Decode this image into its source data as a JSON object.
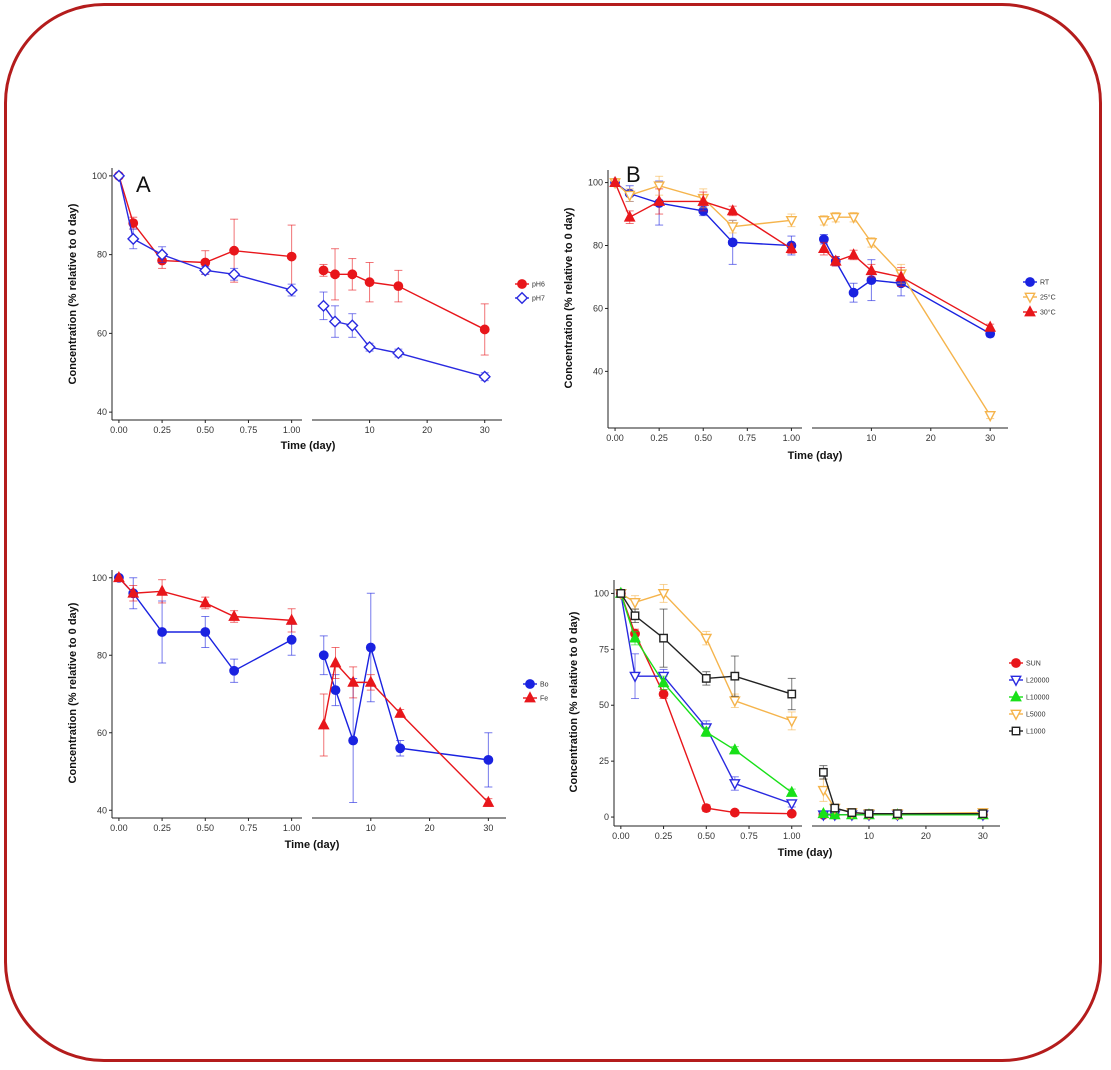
{
  "chart_data": [
    {
      "type": "line",
      "panel_label": "A",
      "xlabel": "Time (day)",
      "ylabel": "Concentration (% relative to 0 day)",
      "ylim": [
        38,
        102
      ],
      "yticks": [
        40,
        60,
        80,
        100
      ],
      "left_xlim": [
        -0.04,
        1.06
      ],
      "left_xticks": [
        "0.00",
        "0.25",
        "0.50",
        "0.75",
        "1.00"
      ],
      "right_xlim": [
        0,
        33
      ],
      "right_xticks": [
        "10",
        "20",
        "30"
      ],
      "legend_position": "right",
      "series": [
        {
          "name": "pH6",
          "color": "#e8161b",
          "marker": "circle",
          "hollow": false,
          "x": [
            0,
            0.083,
            0.25,
            0.5,
            0.667,
            1
          ],
          "y": [
            100,
            88,
            78.5,
            78,
            81,
            79.5
          ],
          "err": [
            0,
            1.5,
            2,
            3,
            8,
            8
          ],
          "x2": [
            2,
            4,
            7,
            10,
            15,
            30
          ],
          "y2": [
            76,
            75,
            75,
            73,
            72,
            61
          ],
          "err2": [
            1.5,
            6.5,
            4,
            5,
            4,
            6.5
          ]
        },
        {
          "name": "pH7",
          "color": "#2a2ae0",
          "marker": "diamond",
          "hollow": true,
          "x": [
            0,
            0.083,
            0.25,
            0.5,
            0.667,
            1
          ],
          "y": [
            100,
            84,
            80,
            76,
            75,
            71
          ],
          "err": [
            0,
            2.5,
            2,
            1,
            1.5,
            1.5
          ],
          "x2": [
            2,
            4,
            7,
            10,
            15,
            30
          ],
          "y2": [
            67,
            63,
            62,
            56.5,
            55,
            49
          ],
          "err2": [
            3.5,
            4,
            3,
            1,
            1,
            1
          ]
        }
      ]
    },
    {
      "type": "line",
      "panel_label": "B",
      "xlabel": "Time (day)",
      "ylabel": "Concentration (% relative to 0 day)",
      "ylim": [
        22,
        104
      ],
      "yticks": [
        40,
        60,
        80,
        100
      ],
      "left_xlim": [
        -0.04,
        1.06
      ],
      "left_xticks": [
        "0.00",
        "0.25",
        "0.50",
        "0.75",
        "1.00"
      ],
      "right_xlim": [
        0,
        33
      ],
      "right_xticks": [
        "10",
        "20",
        "30"
      ],
      "legend_position": "right",
      "series": [
        {
          "name": "RT",
          "color": "#1a22e0",
          "marker": "circle",
          "hollow": false,
          "x": [
            0,
            0.083,
            0.25,
            0.5,
            0.667,
            1
          ],
          "y": [
            100,
            96.5,
            93.5,
            91,
            81,
            80
          ],
          "err": [
            0,
            2.5,
            7,
            1.5,
            7,
            3
          ],
          "x2": [
            2,
            4,
            7,
            10,
            15,
            30
          ],
          "y2": [
            82,
            75,
            65,
            69,
            68,
            52
          ],
          "err2": [
            1.5,
            1.5,
            3,
            6.5,
            4,
            1
          ]
        },
        {
          "name": "25°C",
          "color": "#f5b44c",
          "marker": "triangle-down",
          "hollow": true,
          "x": [
            0,
            0.083,
            0.25,
            0.5,
            0.667,
            1
          ],
          "y": [
            100,
            96,
            99,
            95,
            86,
            88
          ],
          "err": [
            0,
            2,
            3,
            3,
            2,
            2
          ],
          "x2": [
            2,
            4,
            7,
            10,
            15,
            30
          ],
          "y2": [
            88,
            89,
            89,
            81,
            71,
            26
          ],
          "err2": [
            1.5,
            1.5,
            1.5,
            1.5,
            3,
            1
          ]
        },
        {
          "name": "30°C",
          "color": "#e8161b",
          "marker": "triangle",
          "hollow": false,
          "x": [
            0,
            0.083,
            0.25,
            0.5,
            0.667,
            1
          ],
          "y": [
            100,
            89,
            94,
            94,
            91,
            79
          ],
          "err": [
            0,
            2,
            4,
            3,
            1.5,
            1.5
          ],
          "x2": [
            2,
            4,
            7,
            10,
            15,
            30
          ],
          "y2": [
            79,
            75,
            77,
            72,
            70,
            54
          ],
          "err2": [
            2,
            1.5,
            1.5,
            2,
            3,
            1
          ]
        }
      ]
    },
    {
      "type": "line",
      "panel_label": "",
      "xlabel": "Time (day)",
      "ylabel": "Concentration (% relative to 0 day)",
      "ylim": [
        38,
        102
      ],
      "yticks": [
        40,
        60,
        80,
        100
      ],
      "left_xlim": [
        -0.04,
        1.06
      ],
      "left_xticks": [
        "0.00",
        "0.25",
        "0.50",
        "0.75",
        "1.00"
      ],
      "right_xlim": [
        0,
        33
      ],
      "right_xticks": [
        "10",
        "20",
        "30"
      ],
      "legend_position": "right",
      "series": [
        {
          "name": "Bo",
          "color": "#1a22e0",
          "marker": "circle",
          "hollow": false,
          "x": [
            0,
            0.083,
            0.25,
            0.5,
            0.667,
            1
          ],
          "y": [
            100,
            96,
            86,
            86,
            76,
            84
          ],
          "err": [
            0,
            4,
            8,
            4,
            3,
            4
          ],
          "x2": [
            2,
            4,
            7,
            10,
            15,
            30
          ],
          "y2": [
            80,
            71,
            58,
            82,
            56,
            53
          ],
          "err2": [
            5,
            4,
            16,
            14,
            2,
            7
          ]
        },
        {
          "name": "Fe",
          "color": "#e8161b",
          "marker": "triangle",
          "hollow": false,
          "x": [
            0,
            0.083,
            0.25,
            0.5,
            0.667,
            1
          ],
          "y": [
            100,
            96,
            96.5,
            93.5,
            90,
            89
          ],
          "err": [
            0,
            2,
            3,
            1.5,
            1.5,
            3
          ],
          "x2": [
            2,
            4,
            7,
            10,
            15,
            30
          ],
          "y2": [
            62,
            78,
            73,
            73,
            65,
            42
          ],
          "err2": [
            8,
            4,
            4,
            2,
            1,
            1
          ]
        }
      ]
    },
    {
      "type": "line",
      "panel_label": "",
      "xlabel": "Time (day)",
      "ylabel": "Concentration (% relative to 0 day)",
      "ylim": [
        -4,
        106
      ],
      "yticks": [
        0,
        25,
        50,
        75,
        100
      ],
      "left_xlim": [
        -0.04,
        1.06
      ],
      "left_xticks": [
        "0.00",
        "0.25",
        "0.50",
        "0.75",
        "1.00"
      ],
      "right_xlim": [
        0,
        33
      ],
      "right_xticks": [
        "10",
        "20",
        "30"
      ],
      "legend_position": "right",
      "series": [
        {
          "name": "SUN",
          "color": "#e8161b",
          "marker": "circle",
          "hollow": false,
          "x": [
            0,
            0.083,
            0.25,
            0.5,
            0.667,
            1
          ],
          "y": [
            100,
            82,
            55,
            4,
            2,
            1.5
          ],
          "err": [
            0,
            2,
            2,
            1.5,
            1,
            0.5
          ],
          "x2": [
            2,
            4,
            7,
            10,
            15,
            30
          ],
          "y2": [
            1,
            1,
            1,
            1,
            1,
            1
          ],
          "err2": [
            0.5,
            0.5,
            0.5,
            0.5,
            0.5,
            0.5
          ]
        },
        {
          "name": "L20000",
          "color": "#2a2ae0",
          "marker": "triangle-down",
          "hollow": true,
          "x": [
            0,
            0.083,
            0.25,
            0.5,
            0.667,
            1
          ],
          "y": [
            100,
            63,
            63,
            40,
            15,
            6
          ],
          "err": [
            0,
            10,
            3,
            3,
            3,
            1.5
          ],
          "x2": [
            2,
            4,
            7,
            10,
            15,
            30
          ],
          "y2": [
            1,
            1,
            1,
            1,
            1,
            1
          ],
          "err2": [
            0.5,
            0.5,
            0.5,
            0.5,
            0.5,
            0.5
          ]
        },
        {
          "name": "L10000",
          "color": "#18e018",
          "marker": "triangle",
          "hollow": false,
          "x": [
            0,
            0.083,
            0.25,
            0.5,
            0.667,
            1
          ],
          "y": [
            100,
            80,
            60,
            38,
            30,
            11
          ],
          "err": [
            0,
            3,
            3,
            2,
            1.5,
            1.5
          ],
          "x2": [
            2,
            4,
            7,
            10,
            15,
            30
          ],
          "y2": [
            1.5,
            1,
            1,
            1,
            1,
            1
          ],
          "err2": [
            0.5,
            0.5,
            0.5,
            0.5,
            0.5,
            0.5
          ]
        },
        {
          "name": "L5000",
          "color": "#f5b44c",
          "marker": "triangle-down",
          "hollow": true,
          "x": [
            0,
            0.083,
            0.25,
            0.5,
            0.667,
            1
          ],
          "y": [
            100,
            96,
            100,
            80,
            52,
            43
          ],
          "err": [
            0,
            3,
            4,
            3,
            3,
            4
          ],
          "x2": [
            2,
            4,
            7,
            10,
            15,
            30
          ],
          "y2": [
            12,
            4,
            2,
            1.5,
            1.5,
            2
          ],
          "err2": [
            5,
            1.5,
            0.5,
            0.5,
            0.5,
            0.5
          ]
        },
        {
          "name": "L1000",
          "color": "#222222",
          "marker": "square",
          "hollow": true,
          "x": [
            0,
            0.083,
            0.25,
            0.5,
            0.667,
            1
          ],
          "y": [
            100,
            90,
            80,
            62,
            63,
            55
          ],
          "err": [
            0,
            3,
            13,
            3,
            9,
            7
          ],
          "x2": [
            2,
            4,
            7,
            10,
            15,
            30
          ],
          "y2": [
            20,
            4,
            2,
            1.5,
            1.5,
            1.5
          ],
          "err2": [
            3,
            1.5,
            0.5,
            0.5,
            0.5,
            0.5
          ]
        }
      ]
    }
  ]
}
